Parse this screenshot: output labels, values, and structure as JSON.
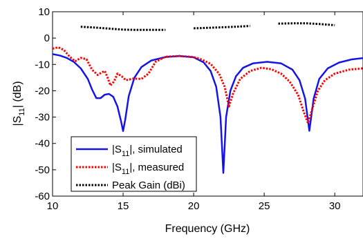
{
  "chart_data": {
    "type": "line",
    "xlabel": "Frequency (GHz)",
    "ylabel_main": "|S",
    "ylabel_sub": "11",
    "ylabel_tail": "| (dB)",
    "xlim": [
      10,
      32
    ],
    "ylim": [
      -60,
      10
    ],
    "xticks": [
      10,
      15,
      20,
      25,
      30
    ],
    "yticks": [
      10,
      0,
      -10,
      -20,
      -30,
      -40,
      -50,
      -60
    ],
    "grid": false,
    "legend_position": "bottom-left",
    "series": [
      {
        "legend_main": "|S",
        "legend_sub": "11",
        "legend_tail": "|, simulated",
        "color": "#1414e6",
        "style": "solid",
        "points": [
          [
            10,
            -6.1
          ],
          [
            10.5,
            -6.6
          ],
          [
            11,
            -7.5
          ],
          [
            11.5,
            -9
          ],
          [
            12,
            -11.5
          ],
          [
            12.5,
            -15.5
          ],
          [
            12.8,
            -19.5
          ],
          [
            13.1,
            -22.8
          ],
          [
            13.4,
            -22.8
          ],
          [
            13.7,
            -21.5
          ],
          [
            14,
            -21.2
          ],
          [
            14.3,
            -22.3
          ],
          [
            14.6,
            -26
          ],
          [
            14.85,
            -31.5
          ],
          [
            15.0,
            -35.3
          ],
          [
            15.15,
            -31
          ],
          [
            15.4,
            -22
          ],
          [
            15.8,
            -15
          ],
          [
            16.3,
            -11
          ],
          [
            17,
            -8.5
          ],
          [
            18,
            -7.2
          ],
          [
            19,
            -6.8
          ],
          [
            20,
            -7.3
          ],
          [
            20.7,
            -9.2
          ],
          [
            21.2,
            -12.5
          ],
          [
            21.6,
            -18.5
          ],
          [
            21.9,
            -30
          ],
          [
            22.1,
            -51.2
          ],
          [
            22.3,
            -30
          ],
          [
            22.6,
            -20
          ],
          [
            23,
            -14.5
          ],
          [
            23.5,
            -11.3
          ],
          [
            24.2,
            -9.6
          ],
          [
            25.2,
            -9
          ],
          [
            26.2,
            -9.6
          ],
          [
            27,
            -12
          ],
          [
            27.5,
            -16
          ],
          [
            27.9,
            -23
          ],
          [
            28.2,
            -35.2
          ],
          [
            28.5,
            -23
          ],
          [
            28.9,
            -15.5
          ],
          [
            29.5,
            -11.5
          ],
          [
            30.3,
            -9.3
          ],
          [
            31.2,
            -8.1
          ],
          [
            32,
            -7.6
          ]
        ]
      },
      {
        "legend_main": "|S",
        "legend_sub": "11",
        "legend_tail": "|, measured",
        "color": "#ff0000",
        "style": "dotted",
        "points": [
          [
            10,
            -4
          ],
          [
            10.4,
            -3.5
          ],
          [
            10.8,
            -4.5
          ],
          [
            11.2,
            -7
          ],
          [
            11.6,
            -8.8
          ],
          [
            12,
            -7.5
          ],
          [
            12.4,
            -8
          ],
          [
            12.8,
            -12
          ],
          [
            13.2,
            -14
          ],
          [
            13.5,
            -13
          ],
          [
            13.7,
            -12.5
          ],
          [
            13.9,
            -15
          ],
          [
            14.1,
            -18
          ],
          [
            14.35,
            -16.5
          ],
          [
            14.6,
            -13.5
          ],
          [
            14.9,
            -14.5
          ],
          [
            15.2,
            -16
          ],
          [
            15.7,
            -15.4
          ],
          [
            16.3,
            -15.5
          ],
          [
            16.8,
            -13.5
          ],
          [
            17.3,
            -9
          ],
          [
            18,
            -7.1
          ],
          [
            19,
            -6.8
          ],
          [
            20,
            -7.2
          ],
          [
            20.6,
            -8.2
          ],
          [
            21.2,
            -9.8
          ],
          [
            21.8,
            -13.5
          ],
          [
            22.2,
            -18.5
          ],
          [
            22.5,
            -26
          ],
          [
            22.8,
            -21
          ],
          [
            23.3,
            -15.5
          ],
          [
            24,
            -12.5
          ],
          [
            24.8,
            -11.3
          ],
          [
            25.5,
            -11.8
          ],
          [
            26.2,
            -13.5
          ],
          [
            26.8,
            -16.5
          ],
          [
            27.4,
            -21.5
          ],
          [
            27.8,
            -28
          ],
          [
            28.1,
            -32.3
          ],
          [
            28.4,
            -27
          ],
          [
            28.8,
            -20
          ],
          [
            29.3,
            -16
          ],
          [
            30,
            -13.5
          ],
          [
            31,
            -12
          ],
          [
            32,
            -11.5
          ]
        ]
      },
      {
        "legend_main": "Peak Gain (dBi)",
        "legend_sub": "",
        "legend_tail": "",
        "color": "#000000",
        "style": "dotted",
        "segments": [
          [
            [
              12,
              4.3
            ],
            [
              13,
              4
            ],
            [
              14,
              3.6
            ],
            [
              15,
              3.2
            ],
            [
              16,
              3.1
            ],
            [
              17,
              3.1
            ],
            [
              18,
              3.1
            ]
          ],
          [
            [
              20,
              3.7
            ],
            [
              21,
              3.9
            ],
            [
              22,
              4.1
            ],
            [
              23,
              4.3
            ],
            [
              24,
              4.6
            ]
          ],
          [
            [
              26,
              5.5
            ],
            [
              27,
              5.6
            ],
            [
              28,
              5.6
            ],
            [
              29,
              5.3
            ],
            [
              30,
              4.9
            ]
          ]
        ]
      }
    ]
  }
}
